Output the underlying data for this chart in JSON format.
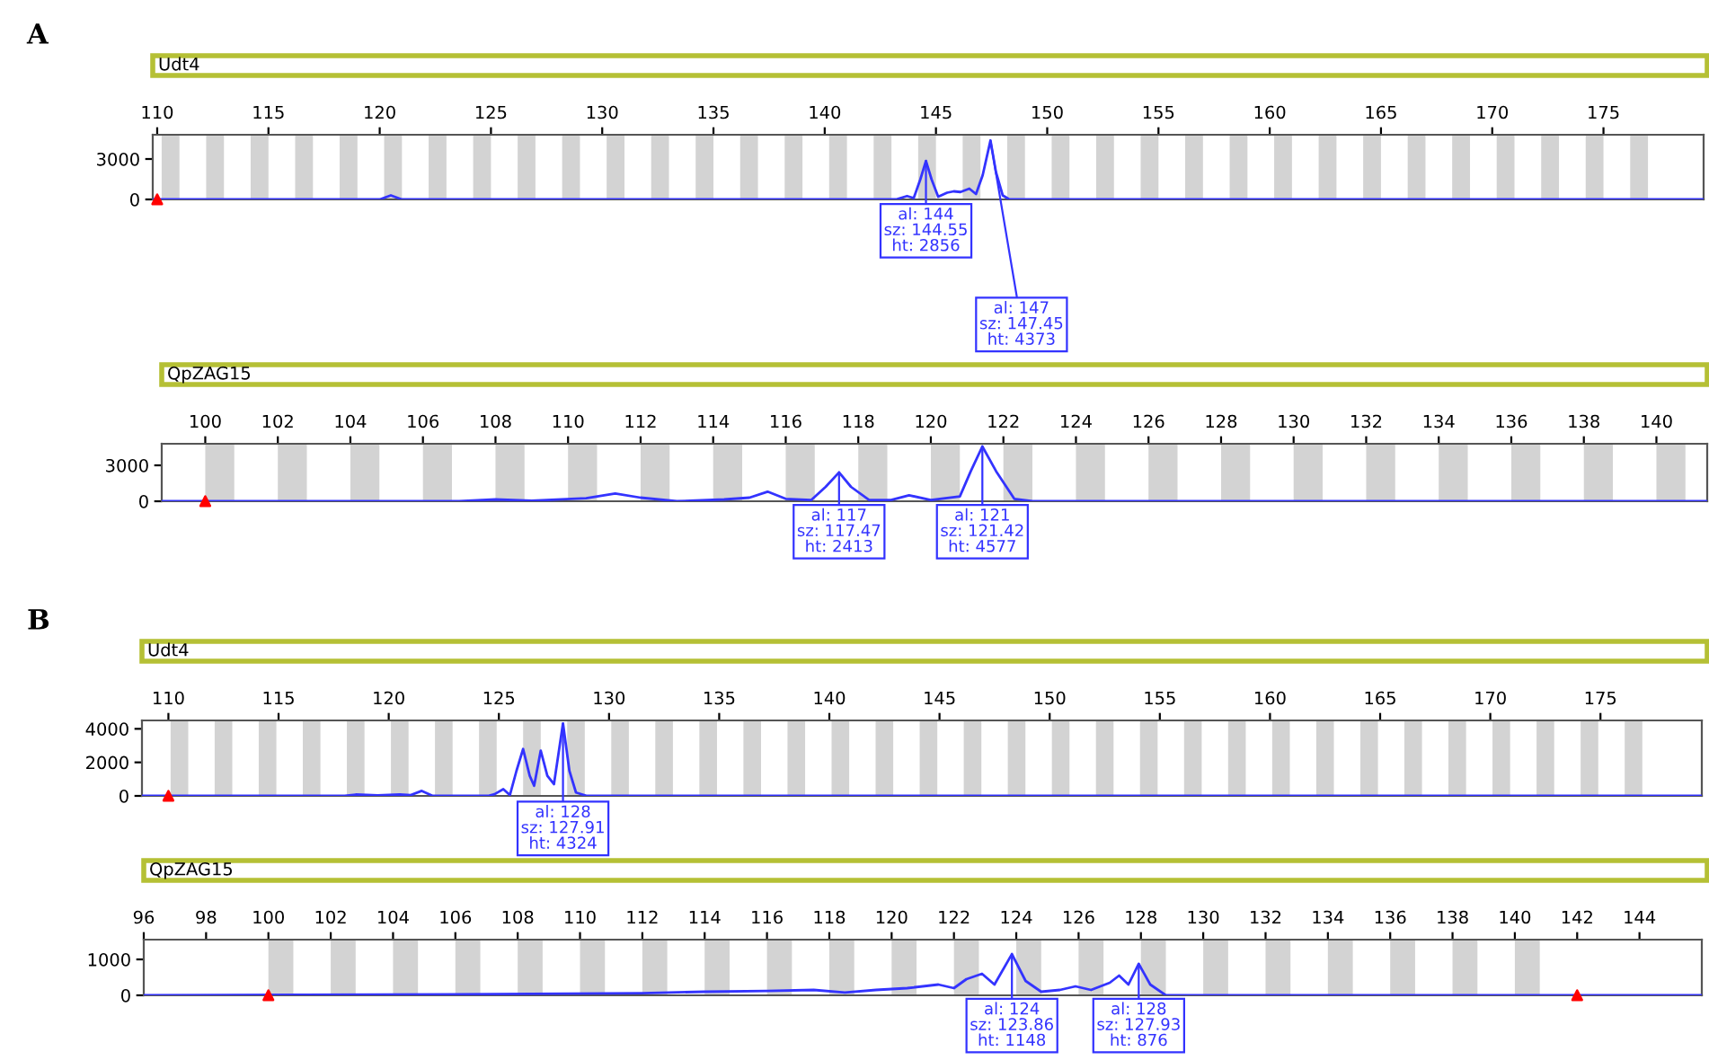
{
  "chart_data": [
    {
      "type": "line",
      "title": "Udt4",
      "annotations": [
        "A",
        {
          "text": "al: 144\nsz: 144.55\nht: 2856",
          "x": 144.55,
          "y": 2856
        },
        {
          "text": "al: 147\nsz: 147.45\nht: 4373",
          "x": 147.45,
          "y": 4373
        }
      ],
      "xlim": [
        109.8,
        179.5
      ],
      "ylim": [
        0,
        4800
      ],
      "xticks": [
        110,
        115,
        120,
        125,
        130,
        135,
        140,
        145,
        150,
        155,
        160,
        165,
        170,
        175
      ],
      "yticks": [
        0,
        3000
      ],
      "grid": false,
      "legend": false,
      "series": [
        {
          "color": "#3333ff",
          "x": [
            109.8,
            120.0,
            120.5,
            121.0,
            143.2,
            143.7,
            144.0,
            144.3,
            144.55,
            144.8,
            145.1,
            145.5,
            145.8,
            146.1,
            146.5,
            146.8,
            147.1,
            147.45,
            147.7,
            148.0,
            148.3,
            179.5
          ],
          "values": [
            0,
            0,
            300,
            0,
            0,
            250,
            100,
            1500,
            2856,
            1500,
            200,
            500,
            600,
            550,
            800,
            400,
            1800,
            4373,
            2000,
            300,
            0,
            0
          ]
        },
        {
          "type": "scatter",
          "marker": "triangle",
          "color": "#ff0000",
          "x": [
            110
          ],
          "values": [
            0
          ]
        }
      ],
      "bands": [
        {
          "axis": "x",
          "from": 110.2,
          "to": 111.0,
          "color": "#d3d3d3"
        },
        {
          "axis": "x",
          "from": 112.2,
          "to": 113.0,
          "color": "#d3d3d3"
        },
        {
          "axis": "x",
          "from": 114.2,
          "to": 115.0,
          "color": "#d3d3d3"
        },
        {
          "axis": "x",
          "from": 116.2,
          "to": 117.0,
          "color": "#d3d3d3"
        },
        {
          "axis": "x",
          "from": 118.2,
          "to": 119.0,
          "color": "#d3d3d3"
        },
        {
          "axis": "x",
          "from": 120.2,
          "to": 121.0,
          "color": "#d3d3d3"
        },
        {
          "axis": "x",
          "from": 122.2,
          "to": 123.0,
          "color": "#d3d3d3"
        },
        {
          "axis": "x",
          "from": 124.2,
          "to": 125.0,
          "color": "#d3d3d3"
        },
        {
          "axis": "x",
          "from": 126.2,
          "to": 127.0,
          "color": "#d3d3d3"
        },
        {
          "axis": "x",
          "from": 128.2,
          "to": 129.0,
          "color": "#d3d3d3"
        },
        {
          "axis": "x",
          "from": 130.2,
          "to": 131.0,
          "color": "#d3d3d3"
        },
        {
          "axis": "x",
          "from": 132.2,
          "to": 133.0,
          "color": "#d3d3d3"
        },
        {
          "axis": "x",
          "from": 134.2,
          "to": 135.0,
          "color": "#d3d3d3"
        },
        {
          "axis": "x",
          "from": 136.2,
          "to": 137.0,
          "color": "#d3d3d3"
        },
        {
          "axis": "x",
          "from": 138.2,
          "to": 139.0,
          "color": "#d3d3d3"
        },
        {
          "axis": "x",
          "from": 140.2,
          "to": 141.0,
          "color": "#d3d3d3"
        },
        {
          "axis": "x",
          "from": 142.2,
          "to": 143.0,
          "color": "#d3d3d3"
        },
        {
          "axis": "x",
          "from": 144.2,
          "to": 145.0,
          "color": "#d3d3d3"
        },
        {
          "axis": "x",
          "from": 146.2,
          "to": 147.0,
          "color": "#d3d3d3"
        },
        {
          "axis": "x",
          "from": 148.2,
          "to": 149.0,
          "color": "#d3d3d3"
        },
        {
          "axis": "x",
          "from": 150.2,
          "to": 151.0,
          "color": "#d3d3d3"
        },
        {
          "axis": "x",
          "from": 152.2,
          "to": 153.0,
          "color": "#d3d3d3"
        },
        {
          "axis": "x",
          "from": 154.2,
          "to": 155.0,
          "color": "#d3d3d3"
        },
        {
          "axis": "x",
          "from": 156.2,
          "to": 157.0,
          "color": "#d3d3d3"
        },
        {
          "axis": "x",
          "from": 158.2,
          "to": 159.0,
          "color": "#d3d3d3"
        },
        {
          "axis": "x",
          "from": 160.2,
          "to": 161.0,
          "color": "#d3d3d3"
        },
        {
          "axis": "x",
          "from": 162.2,
          "to": 163.0,
          "color": "#d3d3d3"
        },
        {
          "axis": "x",
          "from": 164.2,
          "to": 165.0,
          "color": "#d3d3d3"
        },
        {
          "axis": "x",
          "from": 166.2,
          "to": 167.0,
          "color": "#d3d3d3"
        },
        {
          "axis": "x",
          "from": 168.2,
          "to": 169.0,
          "color": "#d3d3d3"
        },
        {
          "axis": "x",
          "from": 170.2,
          "to": 171.0,
          "color": "#d3d3d3"
        },
        {
          "axis": "x",
          "from": 172.2,
          "to": 173.0,
          "color": "#d3d3d3"
        },
        {
          "axis": "x",
          "from": 174.2,
          "to": 175.0,
          "color": "#d3d3d3"
        },
        {
          "axis": "x",
          "from": 176.2,
          "to": 177.0,
          "color": "#d3d3d3"
        }
      ]
    },
    {
      "type": "line",
      "title": "QpZAG15",
      "annotations": [
        {
          "text": "al: 117\nsz: 117.47\nht: 2413",
          "x": 117.47,
          "y": 2413
        },
        {
          "text": "al: 121\nsz: 121.42\nht: 4577",
          "x": 121.42,
          "y": 4577
        }
      ],
      "xlim": [
        98.8,
        141.4
      ],
      "ylim": [
        0,
        4800
      ],
      "xticks": [
        100,
        102,
        104,
        106,
        108,
        110,
        112,
        114,
        116,
        118,
        120,
        122,
        124,
        126,
        128,
        130,
        132,
        134,
        136,
        138,
        140
      ],
      "yticks": [
        0,
        3000
      ],
      "grid": false,
      "legend": false,
      "series": [
        {
          "color": "#3333ff",
          "x": [
            98.8,
            107.0,
            108.0,
            109.0,
            110.5,
            111.3,
            112.0,
            113.0,
            114.3,
            115.0,
            115.5,
            116.0,
            116.7,
            117.1,
            117.47,
            117.8,
            118.3,
            118.9,
            119.4,
            120.0,
            120.8,
            121.1,
            121.42,
            121.8,
            122.3,
            122.8,
            141.4
          ],
          "values": [
            0,
            0,
            150,
            50,
            250,
            650,
            300,
            0,
            150,
            300,
            800,
            200,
            100,
            1200,
            2413,
            1200,
            100,
            100,
            500,
            100,
            400,
            2500,
            4577,
            2500,
            200,
            0,
            0
          ]
        },
        {
          "type": "scatter",
          "marker": "triangle",
          "color": "#ff0000",
          "x": [
            100
          ],
          "values": [
            0
          ]
        }
      ],
      "bands": [
        {
          "axis": "x",
          "from": 100.0,
          "to": 100.8,
          "color": "#d3d3d3"
        },
        {
          "axis": "x",
          "from": 102.0,
          "to": 102.8,
          "color": "#d3d3d3"
        },
        {
          "axis": "x",
          "from": 104.0,
          "to": 104.8,
          "color": "#d3d3d3"
        },
        {
          "axis": "x",
          "from": 106.0,
          "to": 106.8,
          "color": "#d3d3d3"
        },
        {
          "axis": "x",
          "from": 108.0,
          "to": 108.8,
          "color": "#d3d3d3"
        },
        {
          "axis": "x",
          "from": 110.0,
          "to": 110.8,
          "color": "#d3d3d3"
        },
        {
          "axis": "x",
          "from": 112.0,
          "to": 112.8,
          "color": "#d3d3d3"
        },
        {
          "axis": "x",
          "from": 114.0,
          "to": 114.8,
          "color": "#d3d3d3"
        },
        {
          "axis": "x",
          "from": 116.0,
          "to": 116.8,
          "color": "#d3d3d3"
        },
        {
          "axis": "x",
          "from": 118.0,
          "to": 118.8,
          "color": "#d3d3d3"
        },
        {
          "axis": "x",
          "from": 120.0,
          "to": 120.8,
          "color": "#d3d3d3"
        },
        {
          "axis": "x",
          "from": 122.0,
          "to": 122.8,
          "color": "#d3d3d3"
        },
        {
          "axis": "x",
          "from": 124.0,
          "to": 124.8,
          "color": "#d3d3d3"
        },
        {
          "axis": "x",
          "from": 126.0,
          "to": 126.8,
          "color": "#d3d3d3"
        },
        {
          "axis": "x",
          "from": 128.0,
          "to": 128.8,
          "color": "#d3d3d3"
        },
        {
          "axis": "x",
          "from": 130.0,
          "to": 130.8,
          "color": "#d3d3d3"
        },
        {
          "axis": "x",
          "from": 132.0,
          "to": 132.8,
          "color": "#d3d3d3"
        },
        {
          "axis": "x",
          "from": 134.0,
          "to": 134.8,
          "color": "#d3d3d3"
        },
        {
          "axis": "x",
          "from": 136.0,
          "to": 136.8,
          "color": "#d3d3d3"
        },
        {
          "axis": "x",
          "from": 138.0,
          "to": 138.8,
          "color": "#d3d3d3"
        },
        {
          "axis": "x",
          "from": 140.0,
          "to": 140.8,
          "color": "#d3d3d3"
        }
      ]
    },
    {
      "type": "line",
      "title": "Udt4",
      "annotations": [
        "B",
        {
          "text": "al: 128\nsz: 127.91\nht: 4324",
          "x": 127.91,
          "y": 4324
        }
      ],
      "xlim": [
        108.8,
        179.6
      ],
      "ylim": [
        0,
        4500
      ],
      "xticks": [
        110,
        115,
        120,
        125,
        130,
        135,
        140,
        145,
        150,
        155,
        160,
        165,
        170,
        175
      ],
      "yticks": [
        0,
        2000,
        4000
      ],
      "grid": false,
      "legend": false,
      "series": [
        {
          "color": "#3333ff",
          "x": [
            108.8,
            118.0,
            118.5,
            119.5,
            120.5,
            121.0,
            121.5,
            122.0,
            124.5,
            124.8,
            125.2,
            125.5,
            125.8,
            126.1,
            126.4,
            126.6,
            126.9,
            127.2,
            127.5,
            127.91,
            128.2,
            128.5,
            129.0,
            179.6
          ],
          "values": [
            0,
            0,
            80,
            30,
            80,
            50,
            300,
            0,
            0,
            100,
            400,
            50,
            1500,
            2800,
            1200,
            600,
            2700,
            1200,
            700,
            4324,
            1500,
            200,
            0,
            0
          ]
        },
        {
          "type": "scatter",
          "marker": "triangle",
          "color": "#ff0000",
          "x": [
            110
          ],
          "values": [
            0
          ]
        }
      ],
      "bands": [
        {
          "axis": "x",
          "from": 110.1,
          "to": 110.9,
          "color": "#d3d3d3"
        },
        {
          "axis": "x",
          "from": 112.1,
          "to": 112.9,
          "color": "#d3d3d3"
        },
        {
          "axis": "x",
          "from": 114.1,
          "to": 114.9,
          "color": "#d3d3d3"
        },
        {
          "axis": "x",
          "from": 116.1,
          "to": 116.9,
          "color": "#d3d3d3"
        },
        {
          "axis": "x",
          "from": 118.1,
          "to": 118.9,
          "color": "#d3d3d3"
        },
        {
          "axis": "x",
          "from": 120.1,
          "to": 120.9,
          "color": "#d3d3d3"
        },
        {
          "axis": "x",
          "from": 122.1,
          "to": 122.9,
          "color": "#d3d3d3"
        },
        {
          "axis": "x",
          "from": 124.1,
          "to": 124.9,
          "color": "#d3d3d3"
        },
        {
          "axis": "x",
          "from": 126.1,
          "to": 126.9,
          "color": "#d3d3d3"
        },
        {
          "axis": "x",
          "from": 128.1,
          "to": 128.9,
          "color": "#d3d3d3"
        },
        {
          "axis": "x",
          "from": 130.1,
          "to": 130.9,
          "color": "#d3d3d3"
        },
        {
          "axis": "x",
          "from": 132.1,
          "to": 132.9,
          "color": "#d3d3d3"
        },
        {
          "axis": "x",
          "from": 134.1,
          "to": 134.9,
          "color": "#d3d3d3"
        },
        {
          "axis": "x",
          "from": 136.1,
          "to": 136.9,
          "color": "#d3d3d3"
        },
        {
          "axis": "x",
          "from": 138.1,
          "to": 138.9,
          "color": "#d3d3d3"
        },
        {
          "axis": "x",
          "from": 140.1,
          "to": 140.9,
          "color": "#d3d3d3"
        },
        {
          "axis": "x",
          "from": 142.1,
          "to": 142.9,
          "color": "#d3d3d3"
        },
        {
          "axis": "x",
          "from": 144.1,
          "to": 144.9,
          "color": "#d3d3d3"
        },
        {
          "axis": "x",
          "from": 146.1,
          "to": 146.9,
          "color": "#d3d3d3"
        },
        {
          "axis": "x",
          "from": 148.1,
          "to": 148.9,
          "color": "#d3d3d3"
        },
        {
          "axis": "x",
          "from": 150.1,
          "to": 150.9,
          "color": "#d3d3d3"
        },
        {
          "axis": "x",
          "from": 152.1,
          "to": 152.9,
          "color": "#d3d3d3"
        },
        {
          "axis": "x",
          "from": 154.1,
          "to": 154.9,
          "color": "#d3d3d3"
        },
        {
          "axis": "x",
          "from": 156.1,
          "to": 156.9,
          "color": "#d3d3d3"
        },
        {
          "axis": "x",
          "from": 158.1,
          "to": 158.9,
          "color": "#d3d3d3"
        },
        {
          "axis": "x",
          "from": 160.1,
          "to": 160.9,
          "color": "#d3d3d3"
        },
        {
          "axis": "x",
          "from": 162.1,
          "to": 162.9,
          "color": "#d3d3d3"
        },
        {
          "axis": "x",
          "from": 164.1,
          "to": 164.9,
          "color": "#d3d3d3"
        },
        {
          "axis": "x",
          "from": 166.1,
          "to": 166.9,
          "color": "#d3d3d3"
        },
        {
          "axis": "x",
          "from": 168.1,
          "to": 168.9,
          "color": "#d3d3d3"
        },
        {
          "axis": "x",
          "from": 170.1,
          "to": 170.9,
          "color": "#d3d3d3"
        },
        {
          "axis": "x",
          "from": 172.1,
          "to": 172.9,
          "color": "#d3d3d3"
        },
        {
          "axis": "x",
          "from": 174.1,
          "to": 174.9,
          "color": "#d3d3d3"
        },
        {
          "axis": "x",
          "from": 176.1,
          "to": 176.9,
          "color": "#d3d3d3"
        }
      ]
    },
    {
      "type": "line",
      "title": "QpZAG15",
      "annotations": [
        {
          "text": "al: 124\nsz: 123.86\nht: 1148",
          "x": 123.86,
          "y": 1148
        },
        {
          "text": "al: 128\nsz: 127.93\nht: 876",
          "x": 127.93,
          "y": 876
        }
      ],
      "xlim": [
        96,
        146
      ],
      "ylim": [
        0,
        1550
      ],
      "xticks": [
        96,
        98,
        100,
        102,
        104,
        106,
        108,
        110,
        112,
        114,
        116,
        118,
        120,
        122,
        124,
        126,
        128,
        130,
        132,
        134,
        136,
        138,
        140,
        142,
        144
      ],
      "yticks": [
        0,
        1000
      ],
      "grid": false,
      "legend": false,
      "series": [
        {
          "color": "#3333ff",
          "x": [
            96,
            106.0,
            112.0,
            114.0,
            116.0,
            117.5,
            118.5,
            119.5,
            120.5,
            121.5,
            122.0,
            122.4,
            122.9,
            123.3,
            123.86,
            124.3,
            124.8,
            125.4,
            125.9,
            126.4,
            127.0,
            127.3,
            127.6,
            127.93,
            128.3,
            128.8,
            146
          ],
          "values": [
            0,
            30,
            60,
            100,
            120,
            150,
            80,
            150,
            200,
            300,
            200,
            450,
            600,
            300,
            1148,
            400,
            100,
            150,
            250,
            150,
            350,
            550,
            300,
            876,
            300,
            0,
            0
          ]
        },
        {
          "type": "scatter",
          "marker": "triangle",
          "color": "#ff0000",
          "x": [
            100,
            142
          ],
          "values": [
            0,
            0
          ]
        }
      ],
      "bands": [
        {
          "axis": "x",
          "from": 100.0,
          "to": 100.8,
          "color": "#d3d3d3"
        },
        {
          "axis": "x",
          "from": 102.0,
          "to": 102.8,
          "color": "#d3d3d3"
        },
        {
          "axis": "x",
          "from": 104.0,
          "to": 104.8,
          "color": "#d3d3d3"
        },
        {
          "axis": "x",
          "from": 106.0,
          "to": 106.8,
          "color": "#d3d3d3"
        },
        {
          "axis": "x",
          "from": 108.0,
          "to": 108.8,
          "color": "#d3d3d3"
        },
        {
          "axis": "x",
          "from": 110.0,
          "to": 110.8,
          "color": "#d3d3d3"
        },
        {
          "axis": "x",
          "from": 112.0,
          "to": 112.8,
          "color": "#d3d3d3"
        },
        {
          "axis": "x",
          "from": 114.0,
          "to": 114.8,
          "color": "#d3d3d3"
        },
        {
          "axis": "x",
          "from": 116.0,
          "to": 116.8,
          "color": "#d3d3d3"
        },
        {
          "axis": "x",
          "from": 118.0,
          "to": 118.8,
          "color": "#d3d3d3"
        },
        {
          "axis": "x",
          "from": 120.0,
          "to": 120.8,
          "color": "#d3d3d3"
        },
        {
          "axis": "x",
          "from": 122.0,
          "to": 122.8,
          "color": "#d3d3d3"
        },
        {
          "axis": "x",
          "from": 124.0,
          "to": 124.8,
          "color": "#d3d3d3"
        },
        {
          "axis": "x",
          "from": 126.0,
          "to": 126.8,
          "color": "#d3d3d3"
        },
        {
          "axis": "x",
          "from": 128.0,
          "to": 128.8,
          "color": "#d3d3d3"
        },
        {
          "axis": "x",
          "from": 130.0,
          "to": 130.8,
          "color": "#d3d3d3"
        },
        {
          "axis": "x",
          "from": 132.0,
          "to": 132.8,
          "color": "#d3d3d3"
        },
        {
          "axis": "x",
          "from": 134.0,
          "to": 134.8,
          "color": "#d3d3d3"
        },
        {
          "axis": "x",
          "from": 136.0,
          "to": 136.8,
          "color": "#d3d3d3"
        },
        {
          "axis": "x",
          "from": 138.0,
          "to": 138.8,
          "color": "#d3d3d3"
        },
        {
          "axis": "x",
          "from": 140.0,
          "to": 140.8,
          "color": "#d3d3d3"
        }
      ]
    }
  ]
}
